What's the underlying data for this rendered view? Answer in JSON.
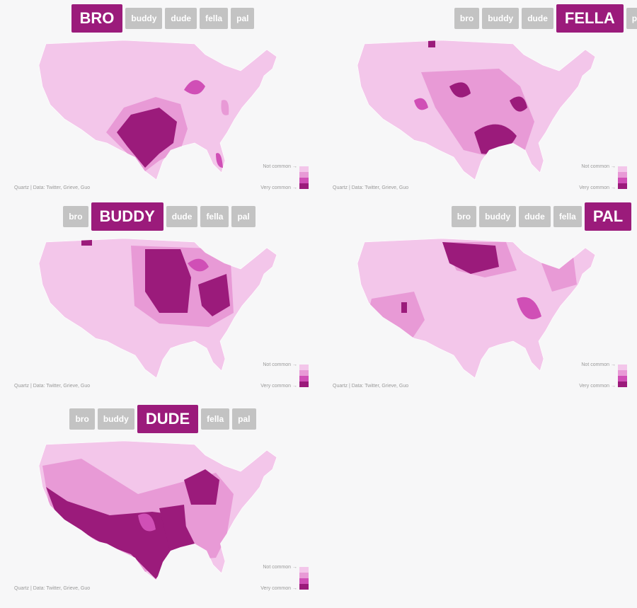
{
  "panels": [
    {
      "tabs": [
        "BRO",
        "buddy",
        "dude",
        "fella",
        "pal"
      ],
      "active": 0,
      "legend": {
        "low": "Not common →",
        "high": "Very common →"
      },
      "credit": "Quartz | Data: Twitter, Grieve, Guo"
    },
    {
      "tabs": [
        "bro",
        "buddy",
        "dude",
        "FELLA",
        "pal"
      ],
      "active": 3,
      "legend": {
        "low": "Not common →",
        "high": "Very common →"
      },
      "credit": "Quartz | Data: Twitter, Grieve, Guo"
    },
    {
      "tabs": [
        "bro",
        "BUDDY",
        "dude",
        "fella",
        "pal"
      ],
      "active": 1,
      "legend": {
        "low": "Not common →",
        "high": "Very common →"
      },
      "credit": "Quartz | Data: Twitter, Grieve, Guo"
    },
    {
      "tabs": [
        "bro",
        "buddy",
        "dude",
        "fella",
        "PAL"
      ],
      "active": 4,
      "legend": {
        "low": "Not common →",
        "high": "Very common →"
      },
      "credit": "Quartz | Data: Twitter, Grieve, Guo"
    },
    {
      "tabs": [
        "bro",
        "buddy",
        "DUDE",
        "fella",
        "pal"
      ],
      "active": 2,
      "legend": {
        "low": "Not common →",
        "high": "Very common →"
      },
      "credit": "Quartz | Data: Twitter, Grieve, Guo"
    }
  ],
  "legend_colors": [
    "#f3c6ea",
    "#e89ad6",
    "#d04fb6",
    "#9b1b7b"
  ]
}
